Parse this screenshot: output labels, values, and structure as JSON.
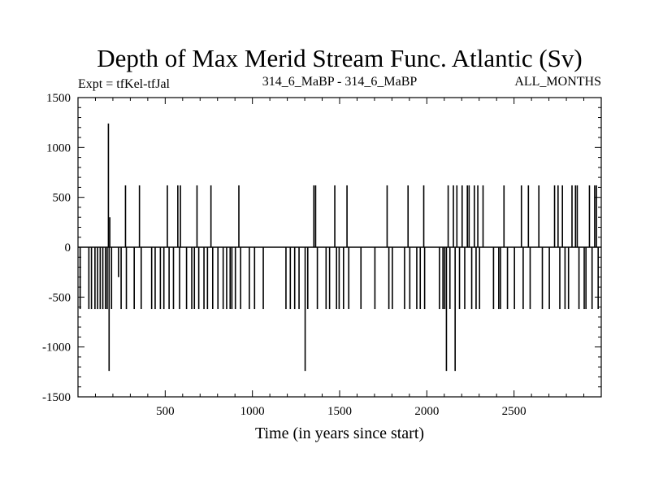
{
  "chart_data": {
    "type": "line",
    "title": "Depth of Max Merid Stream Func. Atlantic (Sv)",
    "subtitle_left": "Expt = tfKel-tfJal",
    "subtitle_center": "314_6_MaBP - 314_6_MaBP",
    "subtitle_right": "ALL_MONTHS",
    "xlabel": "Time (in years since start)",
    "ylabel": "",
    "xlim": [
      0,
      3000
    ],
    "ylim": [
      -1500,
      1500
    ],
    "xticks": [
      500,
      1000,
      1500,
      2000,
      2500
    ],
    "yticks": [
      1500,
      1000,
      500,
      0,
      -500,
      -1000,
      -1500
    ],
    "grid": false,
    "line_color": "#000000",
    "spikes": [
      {
        "x": 10,
        "value": -620
      },
      {
        "x": 60,
        "value": -620
      },
      {
        "x": 75,
        "value": -620
      },
      {
        "x": 95,
        "value": -620
      },
      {
        "x": 110,
        "value": -620
      },
      {
        "x": 125,
        "value": -620
      },
      {
        "x": 140,
        "value": -620
      },
      {
        "x": 155,
        "value": -620
      },
      {
        "x": 165,
        "value": -620
      },
      {
        "x": 172,
        "value": 1240
      },
      {
        "x": 176,
        "value": -1240
      },
      {
        "x": 180,
        "value": 300
      },
      {
        "x": 190,
        "value": -620
      },
      {
        "x": 230,
        "value": -300
      },
      {
        "x": 245,
        "value": -620
      },
      {
        "x": 270,
        "value": 620
      },
      {
        "x": 275,
        "value": -620
      },
      {
        "x": 320,
        "value": -620
      },
      {
        "x": 350,
        "value": 620
      },
      {
        "x": 360,
        "value": -620
      },
      {
        "x": 420,
        "value": -620
      },
      {
        "x": 440,
        "value": -620
      },
      {
        "x": 470,
        "value": -620
      },
      {
        "x": 490,
        "value": -620
      },
      {
        "x": 510,
        "value": 620
      },
      {
        "x": 520,
        "value": -620
      },
      {
        "x": 545,
        "value": -620
      },
      {
        "x": 570,
        "value": 620
      },
      {
        "x": 580,
        "value": -620
      },
      {
        "x": 585,
        "value": 620
      },
      {
        "x": 620,
        "value": -620
      },
      {
        "x": 650,
        "value": -620
      },
      {
        "x": 665,
        "value": -620
      },
      {
        "x": 680,
        "value": 620
      },
      {
        "x": 690,
        "value": -620
      },
      {
        "x": 720,
        "value": -620
      },
      {
        "x": 740,
        "value": -620
      },
      {
        "x": 760,
        "value": 620
      },
      {
        "x": 770,
        "value": -620
      },
      {
        "x": 800,
        "value": -620
      },
      {
        "x": 830,
        "value": -620
      },
      {
        "x": 850,
        "value": -620
      },
      {
        "x": 870,
        "value": -620
      },
      {
        "x": 880,
        "value": -620
      },
      {
        "x": 900,
        "value": -620
      },
      {
        "x": 920,
        "value": 620
      },
      {
        "x": 930,
        "value": -620
      },
      {
        "x": 980,
        "value": -620
      },
      {
        "x": 1010,
        "value": -620
      },
      {
        "x": 1060,
        "value": -620
      },
      {
        "x": 1190,
        "value": -620
      },
      {
        "x": 1215,
        "value": -620
      },
      {
        "x": 1240,
        "value": -620
      },
      {
        "x": 1265,
        "value": -620
      },
      {
        "x": 1300,
        "value": -1240
      },
      {
        "x": 1315,
        "value": -620
      },
      {
        "x": 1350,
        "value": 620
      },
      {
        "x": 1360,
        "value": 620
      },
      {
        "x": 1370,
        "value": -620
      },
      {
        "x": 1420,
        "value": -620
      },
      {
        "x": 1440,
        "value": -620
      },
      {
        "x": 1470,
        "value": 620
      },
      {
        "x": 1480,
        "value": -620
      },
      {
        "x": 1495,
        "value": -620
      },
      {
        "x": 1520,
        "value": -620
      },
      {
        "x": 1540,
        "value": 620
      },
      {
        "x": 1550,
        "value": -620
      },
      {
        "x": 1620,
        "value": -620
      },
      {
        "x": 1700,
        "value": -620
      },
      {
        "x": 1770,
        "value": 620
      },
      {
        "x": 1780,
        "value": -620
      },
      {
        "x": 1800,
        "value": -620
      },
      {
        "x": 1870,
        "value": -620
      },
      {
        "x": 1890,
        "value": 620
      },
      {
        "x": 1900,
        "value": -620
      },
      {
        "x": 1940,
        "value": -620
      },
      {
        "x": 1960,
        "value": -620
      },
      {
        "x": 1980,
        "value": 620
      },
      {
        "x": 1985,
        "value": -620
      },
      {
        "x": 2070,
        "value": -620
      },
      {
        "x": 2090,
        "value": -620
      },
      {
        "x": 2100,
        "value": -620
      },
      {
        "x": 2110,
        "value": -1240
      },
      {
        "x": 2120,
        "value": 620
      },
      {
        "x": 2130,
        "value": -620
      },
      {
        "x": 2150,
        "value": 620
      },
      {
        "x": 2160,
        "value": -1240
      },
      {
        "x": 2170,
        "value": 620
      },
      {
        "x": 2185,
        "value": -620
      },
      {
        "x": 2200,
        "value": 620
      },
      {
        "x": 2215,
        "value": -620
      },
      {
        "x": 2230,
        "value": 620
      },
      {
        "x": 2240,
        "value": 620
      },
      {
        "x": 2255,
        "value": -620
      },
      {
        "x": 2270,
        "value": 620
      },
      {
        "x": 2280,
        "value": -620
      },
      {
        "x": 2290,
        "value": 620
      },
      {
        "x": 2300,
        "value": -620
      },
      {
        "x": 2320,
        "value": 620
      },
      {
        "x": 2380,
        "value": -620
      },
      {
        "x": 2410,
        "value": -620
      },
      {
        "x": 2420,
        "value": -620
      },
      {
        "x": 2440,
        "value": 620
      },
      {
        "x": 2460,
        "value": -620
      },
      {
        "x": 2500,
        "value": -620
      },
      {
        "x": 2540,
        "value": 620
      },
      {
        "x": 2550,
        "value": -620
      },
      {
        "x": 2580,
        "value": 620
      },
      {
        "x": 2590,
        "value": -620
      },
      {
        "x": 2640,
        "value": 620
      },
      {
        "x": 2660,
        "value": -620
      },
      {
        "x": 2700,
        "value": -620
      },
      {
        "x": 2730,
        "value": 620
      },
      {
        "x": 2750,
        "value": 620
      },
      {
        "x": 2760,
        "value": -620
      },
      {
        "x": 2775,
        "value": 620
      },
      {
        "x": 2790,
        "value": -620
      },
      {
        "x": 2810,
        "value": -620
      },
      {
        "x": 2830,
        "value": 620
      },
      {
        "x": 2850,
        "value": 620
      },
      {
        "x": 2860,
        "value": 620
      },
      {
        "x": 2870,
        "value": -620
      },
      {
        "x": 2900,
        "value": -620
      },
      {
        "x": 2910,
        "value": -620
      },
      {
        "x": 2930,
        "value": 620
      },
      {
        "x": 2945,
        "value": -620
      },
      {
        "x": 2960,
        "value": 620
      },
      {
        "x": 2970,
        "value": 620
      },
      {
        "x": 2980,
        "value": -620
      }
    ]
  }
}
